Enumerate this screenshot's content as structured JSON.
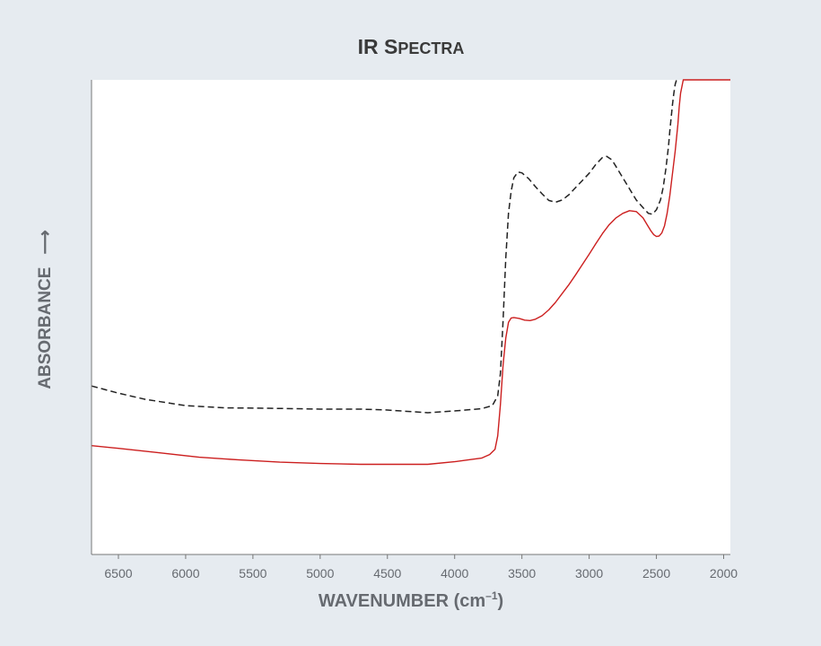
{
  "chart_data": {
    "type": "line",
    "title_main": "IR S",
    "title_rest": "PECTRA",
    "xlabel": "WAVENUMBER (cm",
    "xlabel_sup": "–1",
    "xlabel_close": ")",
    "ylabel": "ABSORBANCE",
    "ylabel_arrow": "⟶",
    "x_reversed": true,
    "xlim": [
      6700,
      1950
    ],
    "ylim": [
      0,
      1
    ],
    "x_ticks": [
      "6500",
      "6000",
      "5500",
      "5000",
      "4500",
      "4000",
      "3500",
      "3000",
      "2500",
      "2000"
    ],
    "grid": false,
    "legend": "none",
    "series": [
      {
        "color": "#222222",
        "style": "dashed",
        "x": [
          6700,
          6500,
          6300,
          6000,
          5700,
          5400,
          5000,
          4700,
          4500,
          4200,
          4000,
          3800,
          3720,
          3680,
          3660,
          3640,
          3620,
          3600,
          3580,
          3560,
          3530,
          3500,
          3450,
          3400,
          3350,
          3300,
          3250,
          3200,
          3150,
          3100,
          3050,
          3000,
          2950,
          2900,
          2870,
          2830,
          2800,
          2750,
          2700,
          2650,
          2600,
          2560,
          2530,
          2500,
          2470,
          2450,
          2430,
          2410,
          2400,
          2390,
          2380,
          2370,
          2360,
          2350
        ],
        "y": [
          0.312,
          0.296,
          0.282,
          0.268,
          0.263,
          0.262,
          0.26,
          0.26,
          0.258,
          0.252,
          0.256,
          0.261,
          0.268,
          0.29,
          0.34,
          0.46,
          0.6,
          0.7,
          0.75,
          0.78,
          0.793,
          0.791,
          0.778,
          0.76,
          0.744,
          0.729,
          0.725,
          0.73,
          0.742,
          0.758,
          0.774,
          0.79,
          0.81,
          0.826,
          0.828,
          0.82,
          0.805,
          0.78,
          0.755,
          0.73,
          0.713,
          0.7,
          0.698,
          0.708,
          0.73,
          0.758,
          0.8,
          0.85,
          0.885,
          0.915,
          0.945,
          0.97,
          0.99,
          1.0
        ]
      },
      {
        "color": "#cc1f1f",
        "style": "solid",
        "x": [
          6700,
          6500,
          6200,
          5900,
          5600,
          5300,
          5000,
          4700,
          4400,
          4200,
          4000,
          3900,
          3800,
          3740,
          3700,
          3680,
          3660,
          3640,
          3620,
          3600,
          3580,
          3560,
          3520,
          3480,
          3440,
          3400,
          3350,
          3300,
          3250,
          3200,
          3150,
          3100,
          3050,
          3000,
          2950,
          2900,
          2850,
          2800,
          2750,
          2700,
          2650,
          2600,
          2570,
          2540,
          2520,
          2500,
          2480,
          2460,
          2440,
          2420,
          2400,
          2390,
          2380,
          2370,
          2360,
          2350,
          2340,
          2330,
          2320,
          2300,
          1950
        ],
        "y": [
          0.178,
          0.172,
          0.162,
          0.152,
          0.146,
          0.141,
          0.138,
          0.136,
          0.136,
          0.136,
          0.142,
          0.146,
          0.15,
          0.158,
          0.17,
          0.2,
          0.27,
          0.36,
          0.42,
          0.455,
          0.465,
          0.466,
          0.464,
          0.46,
          0.459,
          0.462,
          0.47,
          0.483,
          0.5,
          0.52,
          0.54,
          0.562,
          0.585,
          0.608,
          0.632,
          0.655,
          0.675,
          0.69,
          0.7,
          0.706,
          0.704,
          0.69,
          0.675,
          0.66,
          0.652,
          0.648,
          0.649,
          0.656,
          0.672,
          0.7,
          0.74,
          0.765,
          0.79,
          0.815,
          0.84,
          0.87,
          0.9,
          0.94,
          0.97,
          1.0,
          1.0
        ]
      }
    ]
  }
}
